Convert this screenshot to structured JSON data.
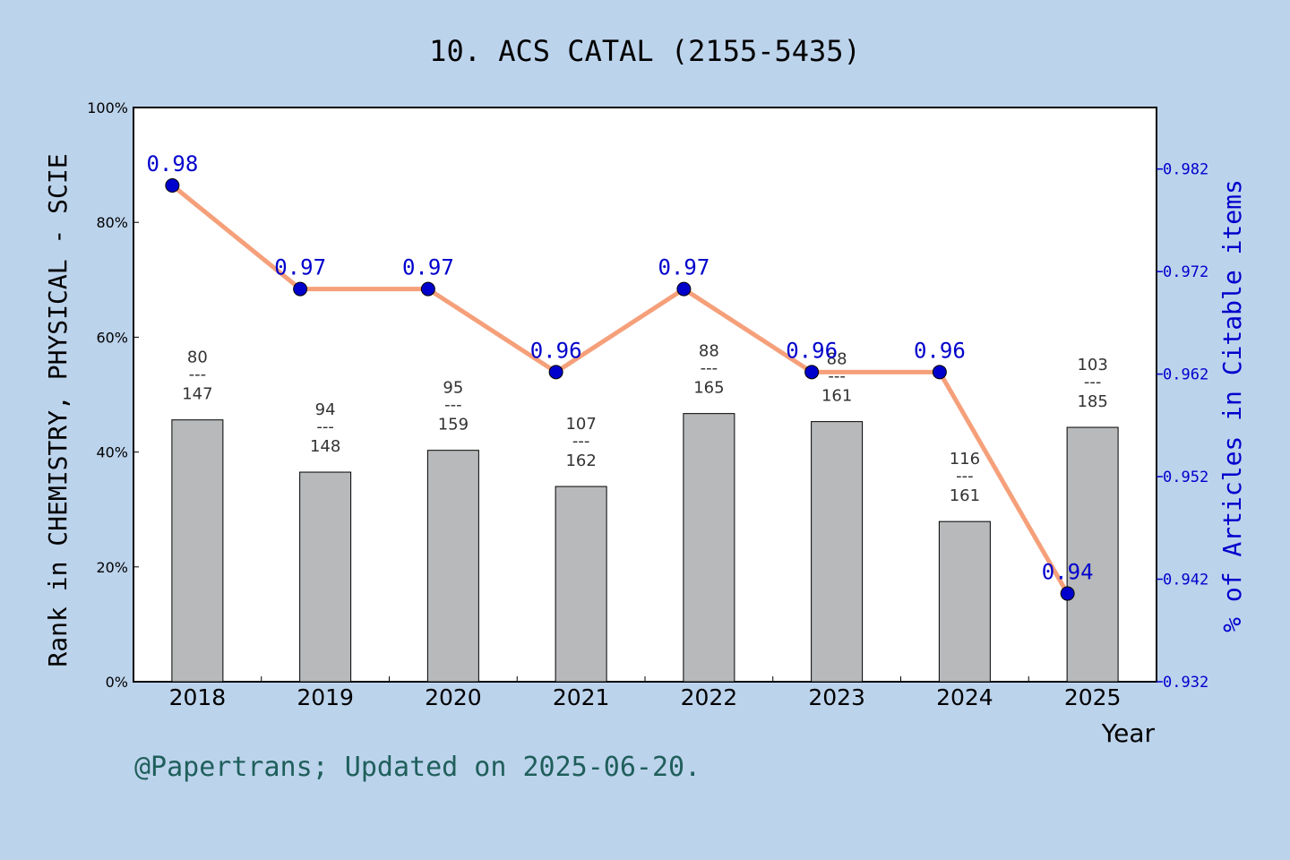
{
  "chart_data": {
    "type": "bar",
    "title": "10. ACS CATAL (2155-5435)",
    "xlabel": "Year",
    "ylabel": "Rank in CHEMISTRY, PHYSICAL - SCIE",
    "y2label": "% of Articles in Citable items",
    "categories": [
      "2018",
      "2019",
      "2020",
      "2021",
      "2022",
      "2023",
      "2024",
      "2025"
    ],
    "ylim": [
      0,
      100
    ],
    "yticks": [
      "0%",
      "20%",
      "40%",
      "60%",
      "80%",
      "100%"
    ],
    "y2lim": [
      0.932,
      0.988
    ],
    "y2ticks": [
      "0.932",
      "0.942",
      "0.952",
      "0.962",
      "0.972",
      "0.982"
    ],
    "bars": {
      "values": [
        45.6,
        36.5,
        40.3,
        34.0,
        46.7,
        45.3,
        27.9,
        44.3
      ],
      "ranks": [
        "80",
        "94",
        "95",
        "107",
        "88",
        "88",
        "116",
        "103"
      ],
      "totals": [
        "147",
        "148",
        "159",
        "162",
        "165",
        "161",
        "161",
        "185"
      ],
      "separator": "---",
      "color": "#b8b9bb"
    },
    "line": {
      "values": [
        0.98,
        0.97,
        0.97,
        0.96,
        0.97,
        0.96,
        0.96,
        0.94
      ],
      "y2_positions": [
        0.9804,
        0.9703,
        0.9703,
        0.9622,
        0.9703,
        0.9622,
        0.9622,
        0.9406
      ],
      "labels": [
        "0.98",
        "0.97",
        "0.97",
        "0.96",
        "0.97",
        "0.96",
        "0.96",
        "0.94"
      ],
      "line_color": "#f5a07a",
      "marker_color": "#0000cc"
    },
    "grid": false,
    "legend": "none"
  },
  "footer": "@Papertrans; Updated on 2025-06-20."
}
